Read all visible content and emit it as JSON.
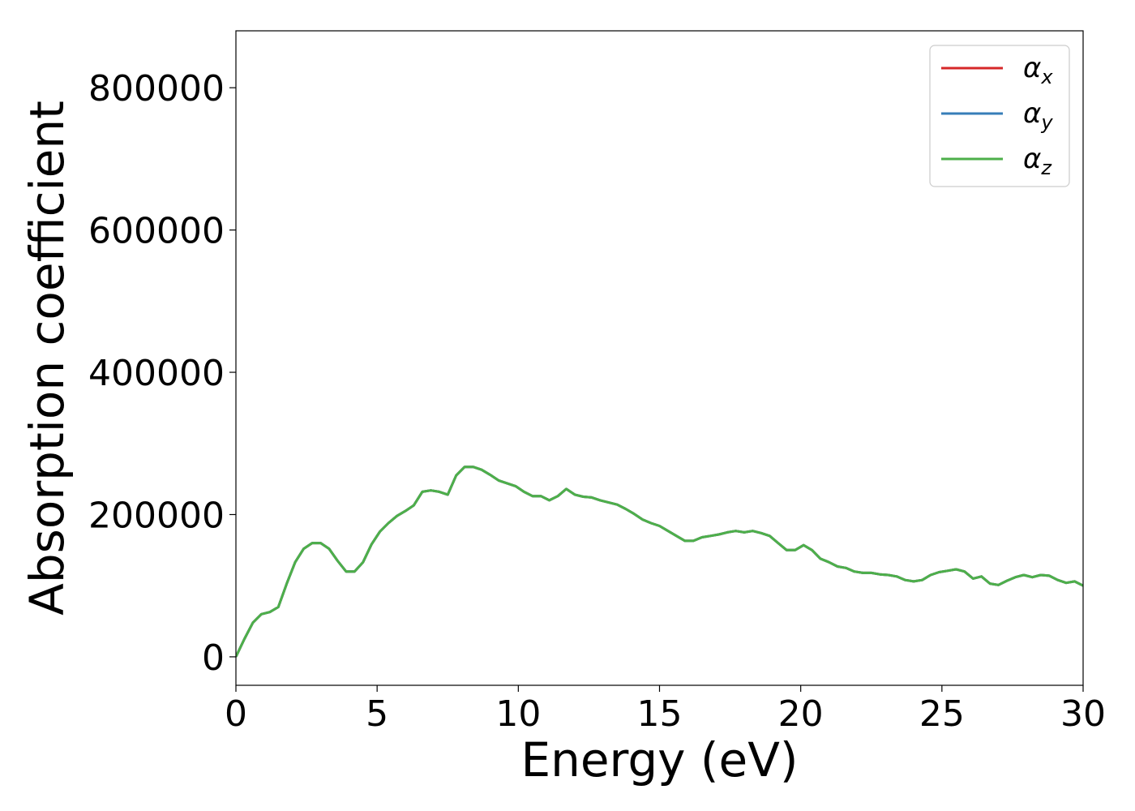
{
  "chart_data": {
    "type": "line",
    "xlabel": "Energy (eV)",
    "ylabel": "Absorption coefficient",
    "xlim": [
      0,
      30
    ],
    "ylim": [
      -40000,
      880000
    ],
    "xticks": [
      0,
      5,
      10,
      15,
      20,
      25,
      30
    ],
    "yticks": [
      0,
      200000,
      400000,
      600000,
      800000
    ],
    "grid": false,
    "legend_position": "top-right",
    "series": [
      {
        "name": "α",
        "name_sub": "x",
        "color": "#d62728",
        "x": [
          0,
          0.3,
          0.6,
          0.9,
          1.2,
          1.5,
          1.8,
          2.1,
          2.4,
          2.7,
          3.0,
          3.3,
          3.6,
          3.9,
          4.2,
          4.5,
          4.8,
          5.1,
          5.4,
          5.7,
          6.0,
          6.3,
          6.6,
          6.9,
          7.2,
          7.5,
          7.8,
          8.1,
          8.4,
          8.7,
          9.0,
          9.3,
          9.6,
          9.9,
          10.2,
          10.5,
          10.8,
          11.1,
          11.4,
          11.7,
          12.0,
          12.3,
          12.6,
          12.9,
          13.2,
          13.5,
          13.8,
          14.1,
          14.4,
          14.7,
          15.0,
          15.3,
          15.6,
          15.9,
          16.2,
          16.5,
          16.8,
          17.1,
          17.4,
          17.7,
          18.0,
          18.3,
          18.6,
          18.9,
          19.2,
          19.5,
          19.8,
          20.1,
          20.4,
          20.7,
          21.0,
          21.3,
          21.6,
          21.9,
          22.2,
          22.5,
          22.8,
          23.1,
          23.4,
          23.7,
          24.0,
          24.3,
          24.6,
          24.9,
          25.2,
          25.5,
          25.8,
          26.1,
          26.4,
          26.7,
          27.0,
          27.3,
          27.6,
          27.9,
          28.2,
          28.5,
          28.8,
          29.1,
          29.4,
          29.7,
          30.0
        ],
        "y": [
          0,
          25000,
          48000,
          60000,
          63000,
          70000,
          103000,
          133000,
          152000,
          160000,
          160000,
          152000,
          135000,
          120000,
          120000,
          133000,
          158000,
          176000,
          188000,
          198000,
          205000,
          213000,
          232000,
          234000,
          232000,
          228000,
          255000,
          267000,
          267000,
          263000,
          256000,
          248000,
          244000,
          240000,
          232000,
          226000,
          226000,
          220000,
          226000,
          236000,
          228000,
          225000,
          224000,
          220000,
          217000,
          214000,
          208000,
          201000,
          193000,
          188000,
          184000,
          177000,
          170000,
          163000,
          163000,
          168000,
          170000,
          172000,
          175000,
          177000,
          175000,
          177000,
          174000,
          170000,
          160000,
          150000,
          150000,
          157000,
          150000,
          138000,
          133000,
          127000,
          125000,
          120000,
          118000,
          118000,
          116000,
          115000,
          113000,
          108000,
          106000,
          108000,
          115000,
          119000,
          121000,
          123000,
          120000,
          110000,
          113000,
          103000,
          101000,
          107000,
          112000,
          115000,
          112000,
          115000,
          114000,
          108000,
          104000,
          106000,
          100000
        ]
      },
      {
        "name": "α",
        "name_sub": "y",
        "color": "#377eb8",
        "x": [
          0,
          0.3,
          0.6,
          0.9,
          1.2,
          1.5,
          1.8,
          2.1,
          2.4,
          2.7,
          3.0,
          3.3,
          3.6,
          3.9,
          4.2,
          4.5,
          4.8,
          5.1,
          5.4,
          5.7,
          6.0,
          6.3,
          6.6,
          6.9,
          7.2,
          7.5,
          7.8,
          8.1,
          8.4,
          8.7,
          9.0,
          9.3,
          9.6,
          9.9,
          10.2,
          10.5,
          10.8,
          11.1,
          11.4,
          11.7,
          12.0,
          12.3,
          12.6,
          12.9,
          13.2,
          13.5,
          13.8,
          14.1,
          14.4,
          14.7,
          15.0,
          15.3,
          15.6,
          15.9,
          16.2,
          16.5,
          16.8,
          17.1,
          17.4,
          17.7,
          18.0,
          18.3,
          18.6,
          18.9,
          19.2,
          19.5,
          19.8,
          20.1,
          20.4,
          20.7,
          21.0,
          21.3,
          21.6,
          21.9,
          22.2,
          22.5,
          22.8,
          23.1,
          23.4,
          23.7,
          24.0,
          24.3,
          24.6,
          24.9,
          25.2,
          25.5,
          25.8,
          26.1,
          26.4,
          26.7,
          27.0,
          27.3,
          27.6,
          27.9,
          28.2,
          28.5,
          28.8,
          29.1,
          29.4,
          29.7,
          30.0
        ],
        "y": [
          0,
          25000,
          48000,
          60000,
          63000,
          70000,
          103000,
          133000,
          152000,
          160000,
          160000,
          152000,
          135000,
          120000,
          120000,
          133000,
          158000,
          176000,
          188000,
          198000,
          205000,
          213000,
          232000,
          234000,
          232000,
          228000,
          255000,
          267000,
          267000,
          263000,
          256000,
          248000,
          244000,
          240000,
          232000,
          226000,
          226000,
          220000,
          226000,
          236000,
          228000,
          225000,
          224000,
          220000,
          217000,
          214000,
          208000,
          201000,
          193000,
          188000,
          184000,
          177000,
          170000,
          163000,
          163000,
          168000,
          170000,
          172000,
          175000,
          177000,
          175000,
          177000,
          174000,
          170000,
          160000,
          150000,
          150000,
          157000,
          150000,
          138000,
          133000,
          127000,
          125000,
          120000,
          118000,
          118000,
          116000,
          115000,
          113000,
          108000,
          106000,
          108000,
          115000,
          119000,
          121000,
          123000,
          120000,
          110000,
          113000,
          103000,
          101000,
          107000,
          112000,
          115000,
          112000,
          115000,
          114000,
          108000,
          104000,
          106000,
          100000
        ]
      },
      {
        "name": "α",
        "name_sub": "z",
        "color": "#4daf4a",
        "x": [
          0,
          0.3,
          0.6,
          0.9,
          1.2,
          1.5,
          1.8,
          2.1,
          2.4,
          2.7,
          3.0,
          3.3,
          3.6,
          3.9,
          4.2,
          4.5,
          4.8,
          5.1,
          5.4,
          5.7,
          6.0,
          6.3,
          6.6,
          6.9,
          7.2,
          7.5,
          7.8,
          8.1,
          8.4,
          8.7,
          9.0,
          9.3,
          9.6,
          9.9,
          10.2,
          10.5,
          10.8,
          11.1,
          11.4,
          11.7,
          12.0,
          12.3,
          12.6,
          12.9,
          13.2,
          13.5,
          13.8,
          14.1,
          14.4,
          14.7,
          15.0,
          15.3,
          15.6,
          15.9,
          16.2,
          16.5,
          16.8,
          17.1,
          17.4,
          17.7,
          18.0,
          18.3,
          18.6,
          18.9,
          19.2,
          19.5,
          19.8,
          20.1,
          20.4,
          20.7,
          21.0,
          21.3,
          21.6,
          21.9,
          22.2,
          22.5,
          22.8,
          23.1,
          23.4,
          23.7,
          24.0,
          24.3,
          24.6,
          24.9,
          25.2,
          25.5,
          25.8,
          26.1,
          26.4,
          26.7,
          27.0,
          27.3,
          27.6,
          27.9,
          28.2,
          28.5,
          28.8,
          29.1,
          29.4,
          29.7,
          30.0
        ],
        "y": [
          0,
          25000,
          48000,
          60000,
          63000,
          70000,
          103000,
          133000,
          152000,
          160000,
          160000,
          152000,
          135000,
          120000,
          120000,
          133000,
          158000,
          176000,
          188000,
          198000,
          205000,
          213000,
          232000,
          234000,
          232000,
          228000,
          255000,
          267000,
          267000,
          263000,
          256000,
          248000,
          244000,
          240000,
          232000,
          226000,
          226000,
          220000,
          226000,
          236000,
          228000,
          225000,
          224000,
          220000,
          217000,
          214000,
          208000,
          201000,
          193000,
          188000,
          184000,
          177000,
          170000,
          163000,
          163000,
          168000,
          170000,
          172000,
          175000,
          177000,
          175000,
          177000,
          174000,
          170000,
          160000,
          150000,
          150000,
          157000,
          150000,
          138000,
          133000,
          127000,
          125000,
          120000,
          118000,
          118000,
          116000,
          115000,
          113000,
          108000,
          106000,
          108000,
          115000,
          119000,
          121000,
          123000,
          120000,
          110000,
          113000,
          103000,
          101000,
          107000,
          112000,
          115000,
          112000,
          115000,
          114000,
          108000,
          104000,
          106000,
          100000
        ]
      }
    ]
  }
}
